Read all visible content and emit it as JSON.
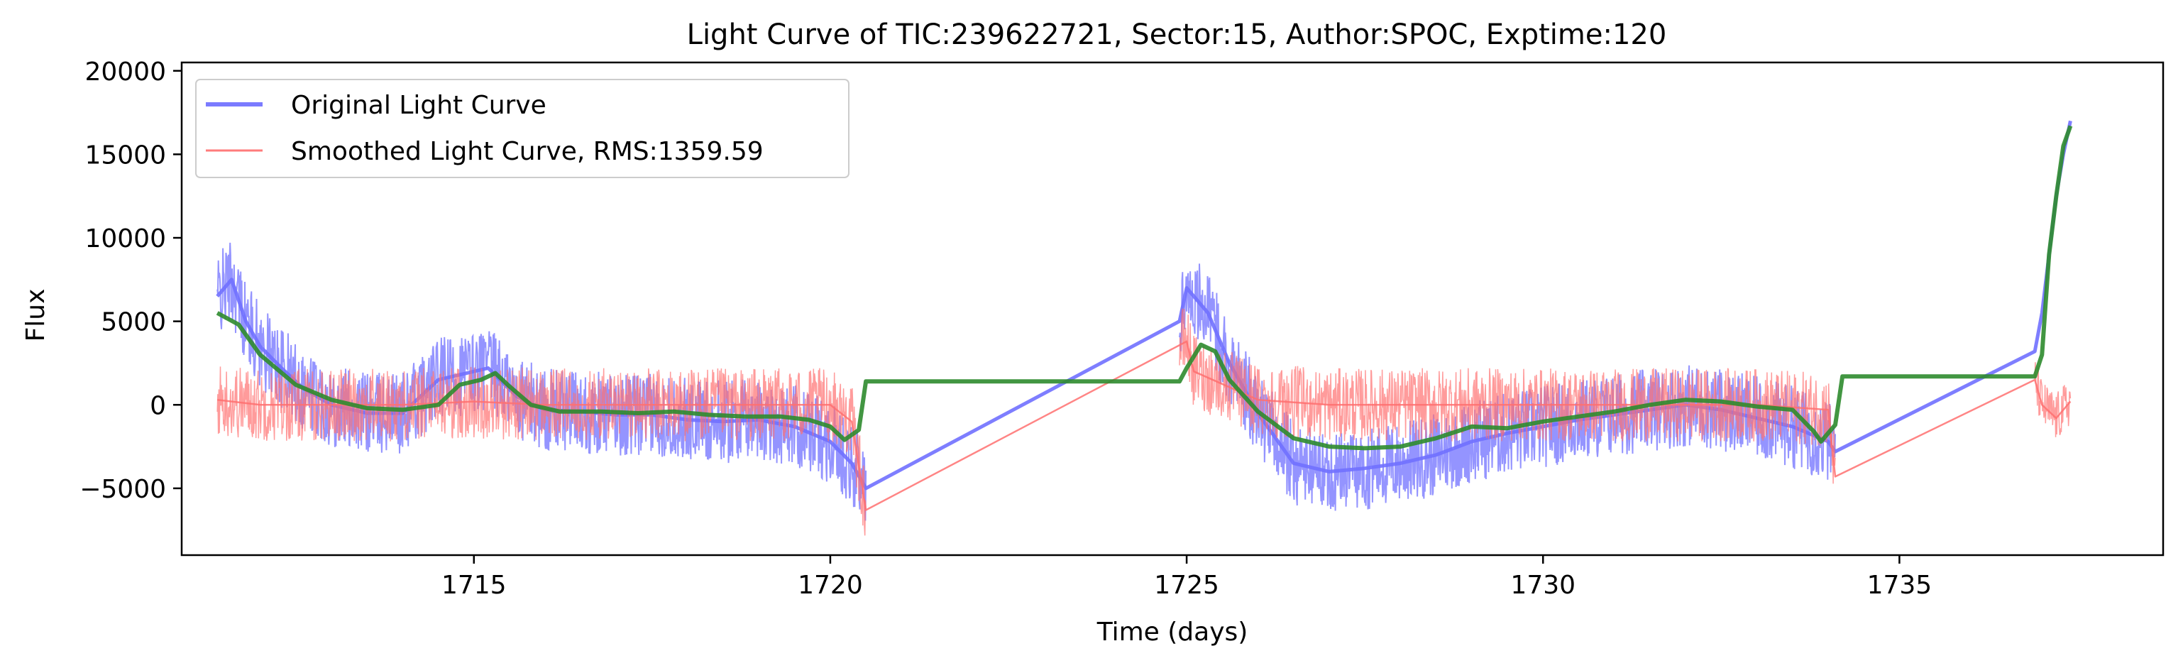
{
  "chart_data": {
    "type": "line",
    "title": "Light Curve of TIC:239622721, Sector:15, Author:SPOC, Exptime:120",
    "xlabel": "Time (days)",
    "ylabel": "Flux",
    "xlim": [
      1710.9,
      1738.7
    ],
    "ylim": [
      -9000,
      20500
    ],
    "xticks": [
      1715,
      1720,
      1725,
      1730,
      1735
    ],
    "yticks": [
      -5000,
      0,
      5000,
      10000,
      15000,
      20000
    ],
    "grid": false,
    "legend_position": "top-left",
    "legend": [
      {
        "label": "Original Light Curve",
        "color": "#7b7bff"
      },
      {
        "label": "Smoothed Light Curve, RMS:1359.59",
        "color": "#ff7b7b"
      }
    ],
    "series": [
      {
        "name": "Original Light Curve",
        "color": "#7070ff",
        "points": [
          [
            1711.4,
            6500
          ],
          [
            1711.6,
            7500
          ],
          [
            1711.8,
            5000
          ],
          [
            1712.0,
            3500
          ],
          [
            1712.3,
            2200
          ],
          [
            1712.6,
            1000
          ],
          [
            1713.0,
            0
          ],
          [
            1713.5,
            -500
          ],
          [
            1714.0,
            -500
          ],
          [
            1714.5,
            1500
          ],
          [
            1714.8,
            1800
          ],
          [
            1715.2,
            2200
          ],
          [
            1715.6,
            500
          ],
          [
            1716.0,
            -300
          ],
          [
            1716.5,
            -400
          ],
          [
            1717.0,
            -600
          ],
          [
            1717.5,
            -600
          ],
          [
            1718.0,
            -900
          ],
          [
            1718.5,
            -1000
          ],
          [
            1719.0,
            -900
          ],
          [
            1719.5,
            -1300
          ],
          [
            1720.0,
            -2200
          ],
          [
            1720.3,
            -3500
          ],
          [
            1720.5,
            -5000
          ],
          [
            1724.9,
            5000
          ],
          [
            1725.0,
            7000
          ],
          [
            1725.3,
            5500
          ],
          [
            1725.6,
            2500
          ],
          [
            1726.0,
            -500
          ],
          [
            1726.5,
            -3500
          ],
          [
            1727.0,
            -4000
          ],
          [
            1727.5,
            -3800
          ],
          [
            1728.0,
            -3500
          ],
          [
            1728.5,
            -3000
          ],
          [
            1729.0,
            -2200
          ],
          [
            1729.5,
            -1700
          ],
          [
            1730.0,
            -1300
          ],
          [
            1730.5,
            -900
          ],
          [
            1731.0,
            -600
          ],
          [
            1731.5,
            -300
          ],
          [
            1732.0,
            0
          ],
          [
            1732.5,
            -300
          ],
          [
            1733.0,
            -800
          ],
          [
            1733.5,
            -1300
          ],
          [
            1734.0,
            -2200
          ],
          [
            1734.1,
            -2800
          ],
          [
            1736.9,
            3200
          ],
          [
            1737.0,
            5500
          ],
          [
            1737.1,
            9000
          ],
          [
            1737.2,
            12500
          ],
          [
            1737.3,
            15000
          ],
          [
            1737.4,
            17000
          ]
        ]
      },
      {
        "name": "Smoothed Light Curve, RMS:1359.59",
        "color": "#ff7070",
        "points": [
          [
            1711.4,
            300
          ],
          [
            1712.0,
            0
          ],
          [
            1713.0,
            0
          ],
          [
            1714.0,
            0
          ],
          [
            1715.0,
            200
          ],
          [
            1716.0,
            0
          ],
          [
            1717.0,
            0
          ],
          [
            1718.0,
            0
          ],
          [
            1719.0,
            0
          ],
          [
            1720.0,
            0
          ],
          [
            1720.3,
            -1000
          ],
          [
            1720.5,
            -6300
          ],
          [
            1725.0,
            3800
          ],
          [
            1725.1,
            2000
          ],
          [
            1726.0,
            300
          ],
          [
            1727.0,
            0
          ],
          [
            1728.0,
            0
          ],
          [
            1729.0,
            0
          ],
          [
            1730.0,
            0
          ],
          [
            1731.0,
            0
          ],
          [
            1732.0,
            0
          ],
          [
            1733.0,
            0
          ],
          [
            1734.0,
            -300
          ],
          [
            1734.1,
            -4300
          ],
          [
            1736.9,
            1500
          ],
          [
            1737.0,
            0
          ],
          [
            1737.2,
            -800
          ],
          [
            1737.4,
            200
          ]
        ]
      },
      {
        "name": "",
        "color": "#2e8b2e",
        "points": [
          [
            1711.4,
            5500
          ],
          [
            1711.7,
            4800
          ],
          [
            1712.0,
            3000
          ],
          [
            1712.5,
            1200
          ],
          [
            1713.0,
            300
          ],
          [
            1713.5,
            -200
          ],
          [
            1714.0,
            -300
          ],
          [
            1714.5,
            0
          ],
          [
            1714.8,
            1200
          ],
          [
            1715.1,
            1500
          ],
          [
            1715.3,
            1900
          ],
          [
            1715.5,
            1100
          ],
          [
            1715.8,
            0
          ],
          [
            1716.2,
            -400
          ],
          [
            1716.8,
            -400
          ],
          [
            1717.3,
            -500
          ],
          [
            1717.8,
            -400
          ],
          [
            1718.3,
            -600
          ],
          [
            1718.8,
            -700
          ],
          [
            1719.3,
            -700
          ],
          [
            1719.7,
            -900
          ],
          [
            1720.0,
            -1300
          ],
          [
            1720.2,
            -2100
          ],
          [
            1720.4,
            -1500
          ],
          [
            1720.5,
            1400
          ],
          [
            1724.9,
            1400
          ],
          [
            1725.0,
            2200
          ],
          [
            1725.2,
            3600
          ],
          [
            1725.4,
            3200
          ],
          [
            1725.6,
            1500
          ],
          [
            1726.0,
            -400
          ],
          [
            1726.5,
            -2000
          ],
          [
            1727.0,
            -2500
          ],
          [
            1727.5,
            -2600
          ],
          [
            1728.0,
            -2500
          ],
          [
            1728.5,
            -2000
          ],
          [
            1729.0,
            -1300
          ],
          [
            1729.5,
            -1400
          ],
          [
            1730.0,
            -1000
          ],
          [
            1730.5,
            -700
          ],
          [
            1731.0,
            -400
          ],
          [
            1731.5,
            0
          ],
          [
            1732.0,
            300
          ],
          [
            1732.5,
            200
          ],
          [
            1733.0,
            -100
          ],
          [
            1733.5,
            -300
          ],
          [
            1733.8,
            -1600
          ],
          [
            1733.9,
            -2200
          ],
          [
            1734.1,
            -1200
          ],
          [
            1734.2,
            1700
          ],
          [
            1736.9,
            1700
          ],
          [
            1737.0,
            3000
          ],
          [
            1737.1,
            9000
          ],
          [
            1737.2,
            12500
          ],
          [
            1737.3,
            15500
          ],
          [
            1737.4,
            16700
          ]
        ]
      }
    ],
    "noise_segments": [
      {
        "series": "Original Light Curve",
        "x": [
          1711.4,
          1720.5
        ],
        "amplitude": 2500
      },
      {
        "series": "Original Light Curve",
        "x": [
          1724.9,
          1734.1
        ],
        "amplitude": 2500
      },
      {
        "series": "Smoothed Light Curve, RMS:1359.59",
        "x": [
          1711.4,
          1720.5
        ],
        "amplitude": 2200
      },
      {
        "series": "Smoothed Light Curve, RMS:1359.59",
        "x": [
          1724.9,
          1734.1
        ],
        "amplitude": 2200
      },
      {
        "series": "Smoothed Light Curve, RMS:1359.59",
        "x": [
          1736.9,
          1737.4
        ],
        "amplitude": 1500
      }
    ]
  }
}
